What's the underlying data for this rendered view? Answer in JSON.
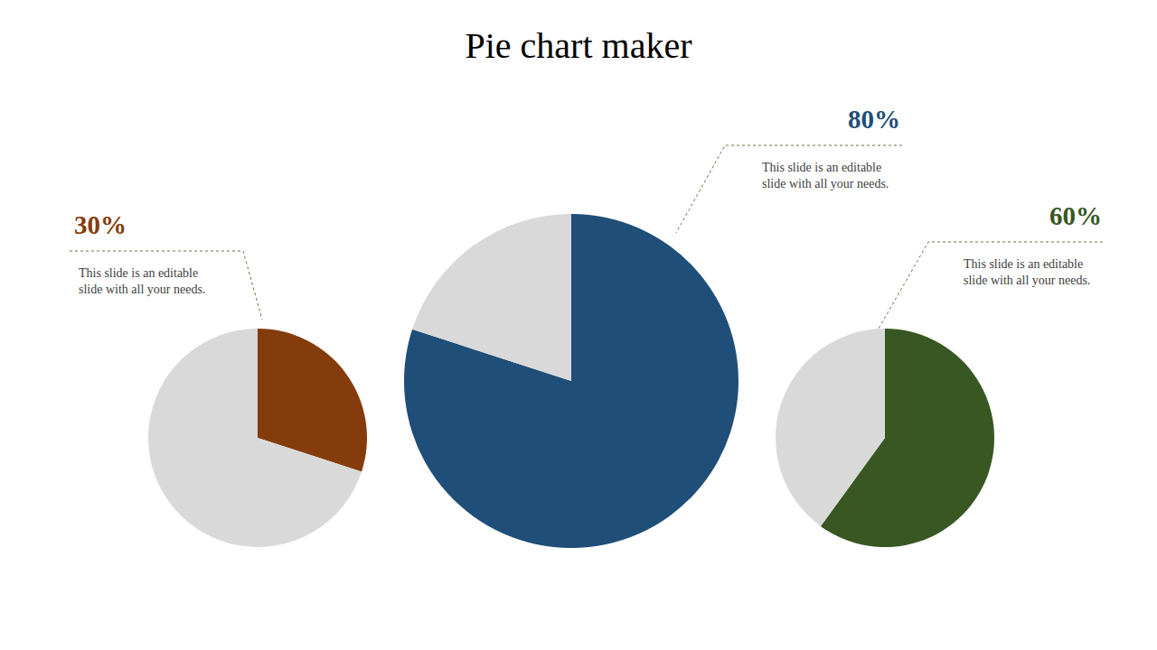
{
  "title": "Pie chart maker",
  "chart_data": [
    {
      "type": "pie",
      "values": [
        30,
        70
      ],
      "colors": [
        "#843c0c",
        "#d9d9d9"
      ],
      "value_labels": [
        "30%",
        null
      ],
      "annotation": [
        "This slide is an editable",
        "slide with all your needs."
      ]
    },
    {
      "type": "pie",
      "values": [
        80,
        20
      ],
      "colors": [
        "#1f4e79",
        "#d9d9d9"
      ],
      "value_labels": [
        "80%",
        null
      ],
      "annotation": [
        "This slide is an editable",
        "slide with all your needs."
      ]
    },
    {
      "type": "pie",
      "values": [
        60,
        40
      ],
      "colors": [
        "#385723",
        "#d9d9d9"
      ],
      "value_labels": [
        "60%",
        null
      ],
      "annotation": [
        "This slide is an editable",
        "slide with all your needs."
      ]
    }
  ]
}
